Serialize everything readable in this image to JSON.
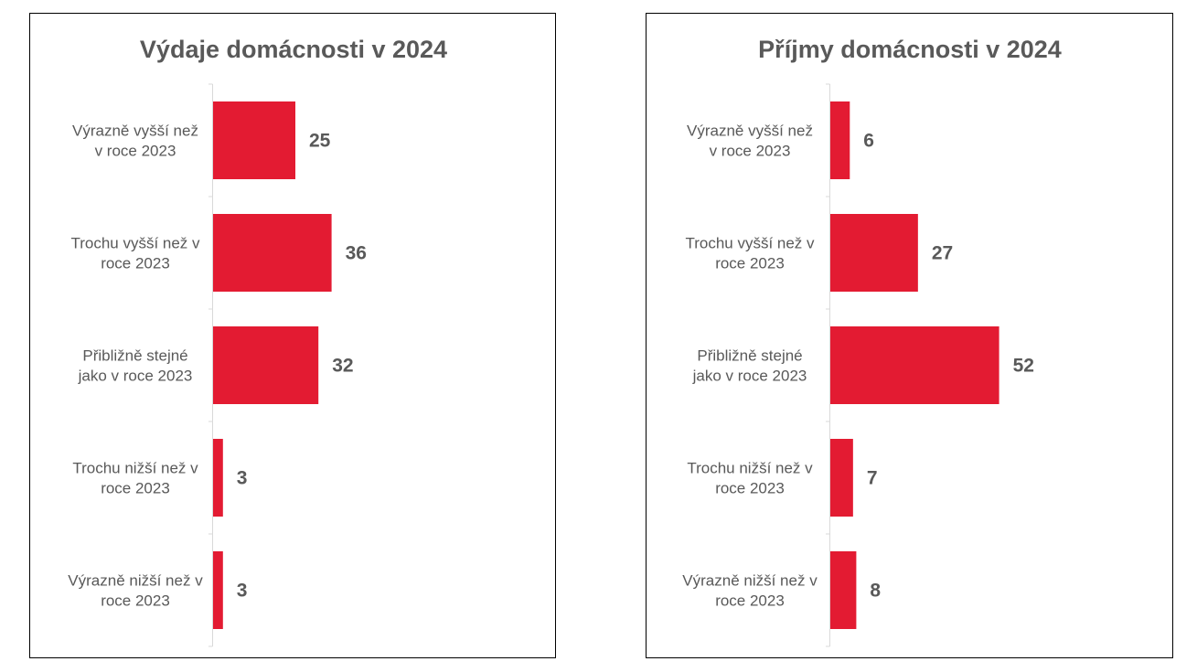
{
  "chart_data": [
    {
      "type": "bar",
      "orientation": "horizontal",
      "title": "Výdaje domácnosti v 2024",
      "categories": [
        [
          "Výrazně vyšší než",
          "v roce 2023"
        ],
        [
          "Trochu vyšší než v",
          "roce 2023"
        ],
        [
          "Přibližně stejné",
          "jako v roce 2023"
        ],
        [
          "Trochu nižší než v",
          "roce 2023"
        ],
        [
          "Výrazně nižší než v",
          "roce 2023"
        ]
      ],
      "values": [
        25,
        36,
        32,
        3,
        3
      ],
      "xlim": [
        0,
        60
      ],
      "bar_color": "#E31B32",
      "grid": false,
      "legend": "none"
    },
    {
      "type": "bar",
      "orientation": "horizontal",
      "title": "Příjmy domácnosti v 2024",
      "categories": [
        [
          "Výrazně vyšší než",
          "v roce 2023"
        ],
        [
          "Trochu vyšší než v",
          "roce 2023"
        ],
        [
          "Přibližně stejné",
          "jako v roce 2023"
        ],
        [
          "Trochu nižší než v",
          "roce 2023"
        ],
        [
          "Výrazně nižší než v",
          "roce 2023"
        ]
      ],
      "values": [
        6,
        27,
        52,
        7,
        8
      ],
      "xlim": [
        0,
        60
      ],
      "bar_color": "#E31B32",
      "grid": false,
      "legend": "none"
    }
  ]
}
